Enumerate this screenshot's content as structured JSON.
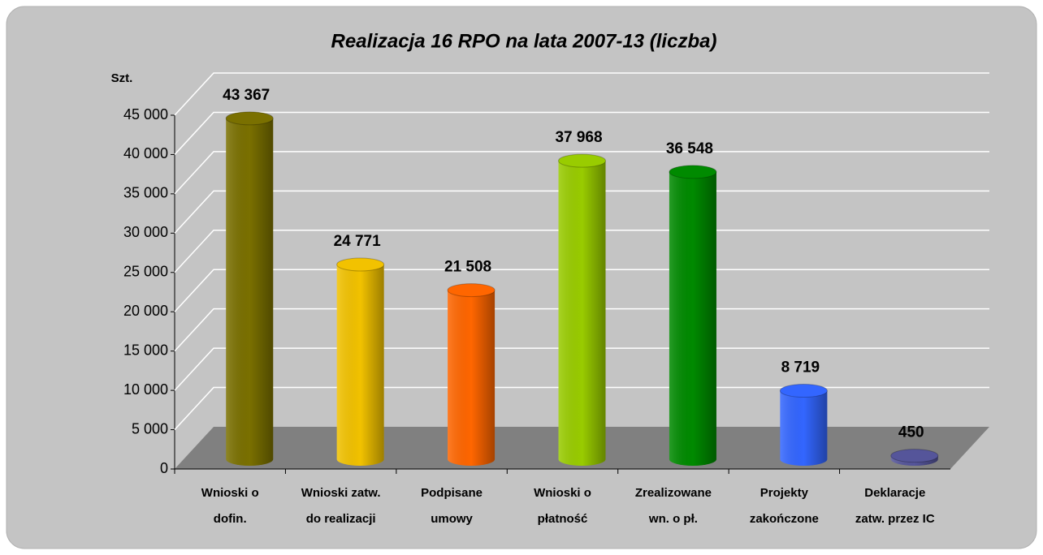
{
  "chart_data": {
    "type": "bar",
    "title": "Realizacja 16 RPO na lata 2007-13 (liczba)",
    "y_axis_label": "Szt.",
    "categories": [
      [
        "Wnioski o",
        "dofin."
      ],
      [
        "Wnioski zatw.",
        "do realizacji"
      ],
      [
        "Podpisane",
        "umowy"
      ],
      [
        "Wnioski o",
        "płatność"
      ],
      [
        "Zrealizowane",
        "wn. o pł."
      ],
      [
        "Projekty",
        "zakończone"
      ],
      [
        "Deklaracje",
        "zatw. przez IC"
      ]
    ],
    "values": [
      43367,
      24771,
      21508,
      37968,
      36548,
      8719,
      450
    ],
    "value_labels": [
      "43 367",
      "24 771",
      "21 508",
      "37 968",
      "36 548",
      "8 719",
      "450"
    ],
    "colors": [
      "#7a7000",
      "#f2c200",
      "#ff6600",
      "#99cc00",
      "#008a00",
      "#3366ff",
      "#55559a"
    ],
    "ylim": [
      0,
      45000
    ],
    "yticks": [
      0,
      {
        "value": 5000,
        "label": "5 000"
      },
      {
        "value": 10000,
        "label": "10 000"
      },
      {
        "value": 15000,
        "label": "15 000"
      },
      {
        "value": 20000,
        "label": "20 000"
      },
      {
        "value": 25000,
        "label": "25 000"
      },
      {
        "value": 30000,
        "label": "30 000"
      },
      {
        "value": 35000,
        "label": "35 000"
      },
      {
        "value": 40000,
        "label": "40 000"
      },
      {
        "value": 45000,
        "label": "45 000"
      }
    ],
    "grid": true
  }
}
